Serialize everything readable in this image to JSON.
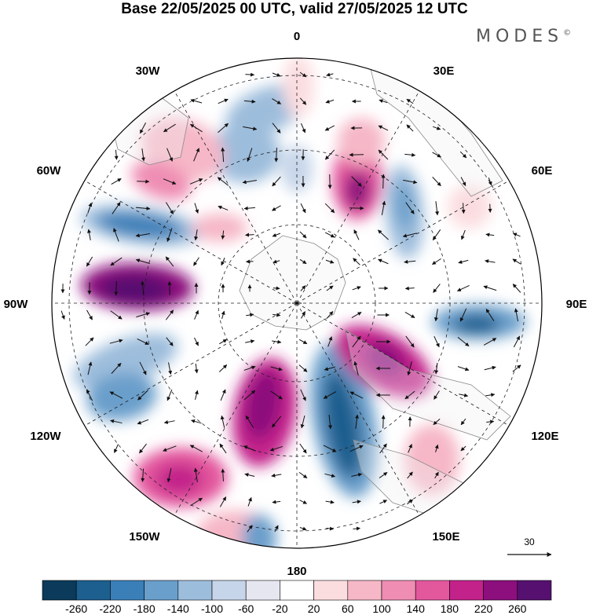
{
  "title": "Base 22/05/2025 00 UTC, valid 27/05/2025 12 UTC",
  "brand": "MODES",
  "brand_mark": "©",
  "longitude_labels": {
    "lon_0": "0",
    "lon_30E": "30E",
    "lon_60E": "60E",
    "lon_90E": "90E",
    "lon_120E": "120E",
    "lon_150E": "150E",
    "lon_180": "180",
    "lon_150W": "150W",
    "lon_120W": "120W",
    "lon_90W": "90W",
    "lon_60W": "60W",
    "lon_30W": "30W"
  },
  "reference_vector": {
    "label": "30"
  },
  "colorbar": {
    "colors": [
      "#0b3a5a",
      "#1d5f8f",
      "#3a7fb8",
      "#6a9fcb",
      "#9dbddc",
      "#c6d5e9",
      "#e6e6f1",
      "#ffffff",
      "#fbdde0",
      "#f6b7c7",
      "#ef8db3",
      "#e3579d",
      "#c3228a",
      "#8c0f7d",
      "#56106f"
    ],
    "tick_values": [
      "-260",
      "-220",
      "-180",
      "-140",
      "-100",
      "-60",
      "-20",
      "20",
      "60",
      "100",
      "140",
      "180",
      "220",
      "260"
    ]
  },
  "palette": {
    "land": "#f0f0f0",
    "coast": "#8a8a8a",
    "arrow": "#111111",
    "grid": "#222222"
  }
}
